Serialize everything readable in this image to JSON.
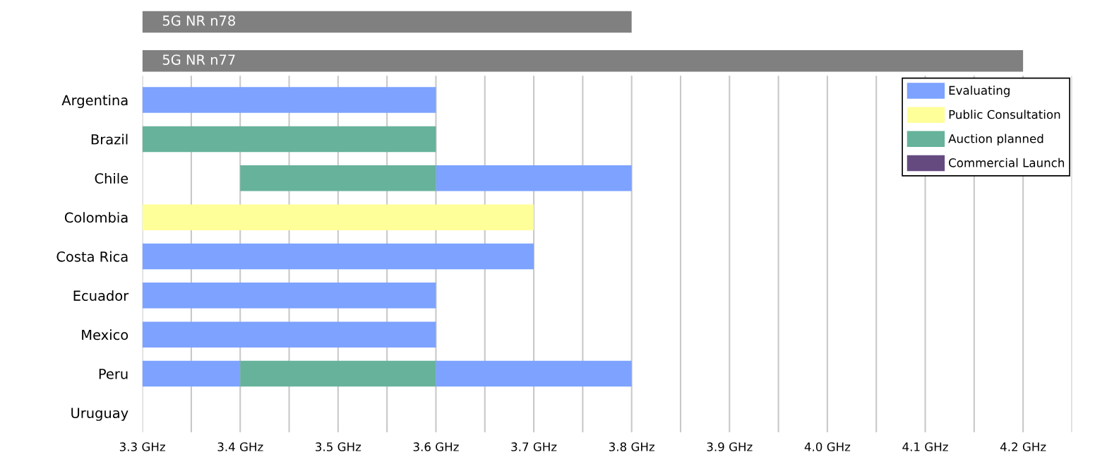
{
  "chart_data": {
    "type": "bar",
    "orientation": "horizontal",
    "categories": [
      null,
      null,
      "Argentina",
      "Brazil",
      "Chile",
      "Colombia",
      "Costa Rica",
      "Ecuador",
      "Mexico",
      "Peru",
      "Uruguay"
    ],
    "series": [
      {
        "name": "5G NR n78",
        "color": "#808080",
        "values": [
          0.5,
          null,
          null,
          null,
          null,
          null,
          null,
          null,
          null,
          null,
          null
        ],
        "base": [
          3.3,
          null,
          null,
          null,
          null,
          null,
          null,
          null,
          null,
          null,
          null
        ]
      },
      {
        "name": "5G NR n77",
        "color": "#808080",
        "values": [
          null,
          0.9,
          null,
          null,
          null,
          null,
          null,
          null,
          null,
          null,
          null
        ],
        "base": [
          null,
          3.3,
          null,
          null,
          null,
          null,
          null,
          null,
          null,
          null,
          null
        ]
      },
      {
        "name": "Evaluating",
        "color": "#7da2ff",
        "values": [
          null,
          null,
          0.3,
          null,
          0.2,
          null,
          0.4,
          0.3,
          0.3,
          0.1,
          null
        ],
        "base": [
          null,
          null,
          3.3,
          null,
          3.6,
          null,
          3.3,
          3.3,
          3.3,
          3.3,
          null
        ]
      },
      {
        "name": "Public Consultation",
        "color": "#ffff99",
        "values": [
          null,
          null,
          null,
          null,
          null,
          0.4,
          null,
          null,
          null,
          null,
          null
        ],
        "base": [
          null,
          null,
          null,
          null,
          null,
          3.3,
          null,
          null,
          null,
          null,
          null
        ]
      },
      {
        "name": "Auction planned",
        "color": "#66b29a",
        "values": [
          null,
          null,
          null,
          0.3,
          0.2,
          null,
          null,
          null,
          null,
          0.2,
          null
        ],
        "base": [
          null,
          null,
          null,
          3.3,
          3.4,
          null,
          null,
          null,
          null,
          3.4,
          null
        ]
      },
      {
        "name": "Commercial Launch",
        "color": "#654a80",
        "values": [
          null,
          null,
          null,
          null,
          null,
          null,
          null,
          null,
          null,
          null,
          null
        ],
        "base": [
          null,
          null,
          null,
          null,
          null,
          null,
          null,
          null,
          null,
          null,
          null
        ]
      },
      {
        "color": "#7da2ff",
        "values": [
          null,
          null,
          null,
          null,
          null,
          null,
          null,
          null,
          null,
          0.2,
          null
        ],
        "base": [
          null,
          null,
          null,
          null,
          null,
          null,
          null,
          null,
          null,
          3.6,
          null
        ]
      }
    ],
    "xlim": [
      3.3,
      4.25
    ],
    "xticks": [
      {
        "value": 3.3,
        "label": "3.3 GHz"
      },
      {
        "value": 3.35,
        "label": null
      },
      {
        "value": 3.4,
        "label": "3.4 GHz"
      },
      {
        "value": 3.45,
        "label": null
      },
      {
        "value": 3.5,
        "label": "3.5 GHz"
      },
      {
        "value": 3.55,
        "label": null
      },
      {
        "value": 3.6,
        "label": "3.6 GHz"
      },
      {
        "value": 3.65,
        "label": null
      },
      {
        "value": 3.7,
        "label": "3.7 GHz"
      },
      {
        "value": 3.75,
        "label": null
      },
      {
        "value": 3.8,
        "label": "3.8 GHz"
      },
      {
        "value": 3.85,
        "label": null
      },
      {
        "value": 3.9,
        "label": "3.9 GHz"
      },
      {
        "value": 3.95,
        "label": null
      },
      {
        "value": 4.0,
        "label": "4.0 GHz"
      },
      {
        "value": 4.05,
        "label": null
      },
      {
        "value": 4.1,
        "label": "4.1 GHz"
      },
      {
        "value": 4.15,
        "label": null
      },
      {
        "value": 4.2,
        "label": "4.2 GHz"
      },
      {
        "value": 4.25,
        "label": null
      }
    ],
    "grid": "x",
    "legend": "top right"
  }
}
